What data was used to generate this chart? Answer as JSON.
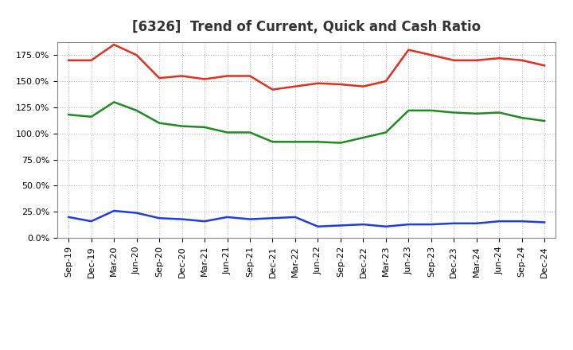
{
  "title": "[6326]  Trend of Current, Quick and Cash Ratio",
  "x_labels": [
    "Sep-19",
    "Dec-19",
    "Mar-20",
    "Jun-20",
    "Sep-20",
    "Dec-20",
    "Mar-21",
    "Jun-21",
    "Sep-21",
    "Dec-21",
    "Mar-22",
    "Jun-22",
    "Sep-22",
    "Dec-22",
    "Mar-23",
    "Jun-23",
    "Sep-23",
    "Dec-23",
    "Mar-24",
    "Jun-24",
    "Sep-24",
    "Dec-24"
  ],
  "current_ratio": [
    170,
    170,
    185,
    175,
    153,
    155,
    152,
    155,
    155,
    142,
    145,
    148,
    147,
    145,
    150,
    180,
    175,
    170,
    170,
    172,
    170,
    165
  ],
  "quick_ratio": [
    118,
    116,
    130,
    122,
    110,
    107,
    106,
    101,
    101,
    92,
    92,
    92,
    91,
    96,
    101,
    122,
    122,
    120,
    119,
    120,
    115,
    112
  ],
  "cash_ratio": [
    20,
    16,
    26,
    24,
    19,
    18,
    16,
    20,
    18,
    19,
    20,
    11,
    12,
    13,
    11,
    13,
    13,
    14,
    14,
    16,
    16,
    15
  ],
  "current_color": "#e0301e",
  "quick_color": "#1e8b1e",
  "cash_color": "#1e3ce0",
  "background_color": "#ffffff",
  "plot_bg_color": "#ffffff",
  "grid_color": "#999999",
  "ylim": [
    0,
    187.5
  ],
  "yticks": [
    0,
    25,
    50,
    75,
    100,
    125,
    150,
    175
  ],
  "title_fontsize": 12,
  "tick_fontsize": 8,
  "legend_fontsize": 9
}
